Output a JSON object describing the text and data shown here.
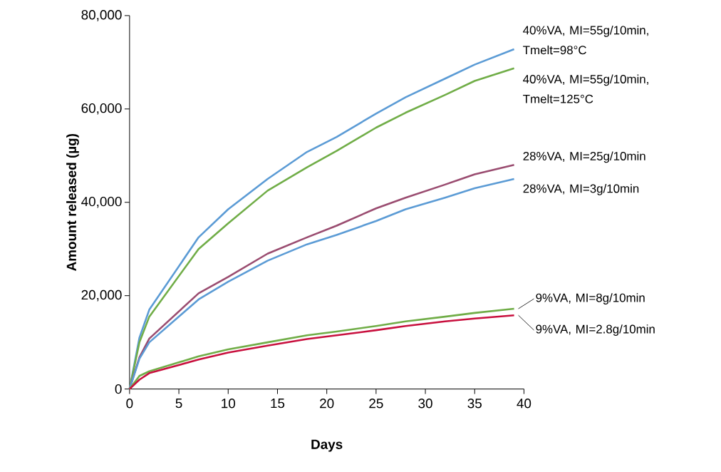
{
  "chart_data": {
    "type": "line",
    "xlabel": "Days",
    "ylabel": "Amount released (µg)",
    "x": [
      0,
      1,
      2,
      7,
      10,
      14,
      18,
      21,
      25,
      28,
      32,
      35,
      39
    ],
    "series": [
      {
        "name": "40%VA, MI=55g/10min, Tmelt=98°C",
        "color": "#5b9bd5",
        "values": [
          0,
          11000,
          17000,
          32500,
          38500,
          45000,
          50800,
          54000,
          59000,
          62500,
          66500,
          69500,
          72800
        ]
      },
      {
        "name": "40%VA, MI=55g/10min, Tmelt=125°C",
        "color": "#70ad47",
        "values": [
          0,
          10000,
          15500,
          30000,
          35500,
          42500,
          47500,
          51000,
          56000,
          59200,
          63000,
          66000,
          68700
        ]
      },
      {
        "name": "28%VA, MI=25g/10min",
        "color": "#9a4c70",
        "values": [
          0,
          6800,
          10800,
          20500,
          24000,
          29000,
          32500,
          35000,
          38700,
          41000,
          43800,
          46000,
          48000
        ]
      },
      {
        "name": "28%VA, MI=3g/10min",
        "color": "#5b9bd5",
        "values": [
          0,
          6500,
          10000,
          19200,
          23000,
          27500,
          31000,
          33000,
          36000,
          38500,
          41000,
          43000,
          45000
        ]
      },
      {
        "name": "9%VA, MI=8g/10min",
        "color": "#70ad47",
        "values": [
          0,
          2800,
          3800,
          7000,
          8500,
          10000,
          11500,
          12300,
          13500,
          14500,
          15500,
          16300,
          17200
        ]
      },
      {
        "name": "9%VA, MI=2.8g/10min",
        "color": "#c8103e",
        "values": [
          0,
          2000,
          3400,
          6300,
          7800,
          9300,
          10700,
          11500,
          12600,
          13500,
          14500,
          15100,
          15800
        ]
      }
    ],
    "xlim": [
      0,
      40
    ],
    "ylim": [
      0,
      80000
    ],
    "xticks": [
      0,
      5,
      10,
      15,
      20,
      25,
      30,
      35,
      40
    ],
    "yticks": [
      {
        "value": 0,
        "label": "0"
      },
      {
        "value": 20000,
        "label": "20,000"
      },
      {
        "value": 40000,
        "label": "40,000"
      },
      {
        "value": 60000,
        "label": "60,000"
      },
      {
        "value": 80000,
        "label": "80,000"
      }
    ],
    "grid": false,
    "legend": false,
    "marker": "none",
    "line_style": "solid"
  }
}
